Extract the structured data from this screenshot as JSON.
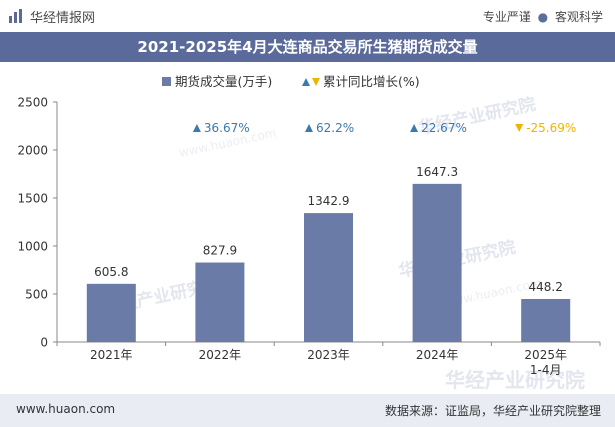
{
  "header": {
    "brand": "华经情报网",
    "slogan_left": "专业严谨",
    "slogan_sep": "●",
    "slogan_right": "客观科学"
  },
  "watermark": {
    "text": "华经产业研究院",
    "url": "www.huaon.com"
  },
  "footer": {
    "url": "www.huaon.com",
    "source": "数据来源：证监局，华经产业研究院整理"
  },
  "colors": {
    "bar": "#6a7ba8",
    "title_bg": "#5a6a9a",
    "up": "#3a7ab0",
    "down": "#f0b400",
    "axis": "#888888",
    "footer_bg": "#e9ecf3"
  },
  "chart_data": {
    "type": "bar",
    "title": "2021-2025年4月大连商品交易所生猪期货成交量",
    "categories": [
      "2021年",
      "2022年",
      "2023年",
      "2024年",
      "2025年\n1-4月"
    ],
    "series": [
      {
        "name": "期货成交量(万手)",
        "values": [
          605.8,
          827.9,
          1342.9,
          1647.3,
          448.2
        ],
        "labels": [
          "605.8",
          "827.9",
          "1342.9",
          "1647.3",
          "448.2"
        ]
      }
    ],
    "growth": {
      "name": "累计同比增长(%)",
      "values": [
        null,
        36.67,
        62.2,
        22.67,
        -25.69
      ],
      "labels": [
        "",
        "36.67%",
        "62.2%",
        "22.67%",
        "-25.69%"
      ]
    },
    "legend": [
      "期货成交量(万手)",
      "累计同比增长(%)"
    ],
    "yticks": [
      0,
      500,
      1000,
      1500,
      2000,
      2500
    ],
    "ylim": [
      0,
      2500
    ],
    "xlabel": "",
    "ylabel": ""
  }
}
